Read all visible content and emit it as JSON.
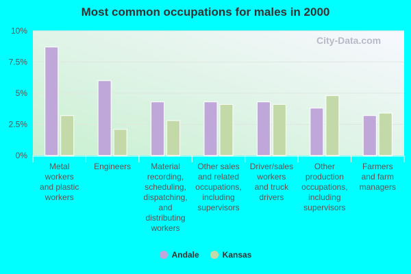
{
  "chart_data": {
    "type": "bar",
    "title": "Most common occupations for males in 2000",
    "categories": [
      [
        "Metal",
        "workers",
        "and plastic",
        "workers"
      ],
      [
        "Engineers"
      ],
      [
        "Material",
        "recording,",
        "scheduling,",
        "dispatching,",
        "and",
        "distributing",
        "workers"
      ],
      [
        "Other sales",
        "and related",
        "occupations,",
        "including",
        "supervisors"
      ],
      [
        "Driver/sales",
        "workers",
        "and truck",
        "drivers"
      ],
      [
        "Other",
        "production",
        "occupations,",
        "including",
        "supervisors"
      ],
      [
        "Farmers",
        "and farm",
        "managers"
      ]
    ],
    "series": [
      {
        "name": "Andale",
        "color": "#bfa8d9",
        "values": [
          8.7,
          6.0,
          4.3,
          4.3,
          4.3,
          3.8,
          3.2
        ]
      },
      {
        "name": "Kansas",
        "color": "#c4d9a8",
        "values": [
          3.2,
          2.1,
          2.8,
          4.1,
          4.1,
          4.8,
          3.4
        ]
      }
    ],
    "yticks": [
      "0%",
      "2.5%",
      "5%",
      "7.5%",
      "10%"
    ],
    "ylim": [
      0,
      10
    ],
    "grid": true,
    "legend": "bottom"
  },
  "watermark": "City-Data.com"
}
